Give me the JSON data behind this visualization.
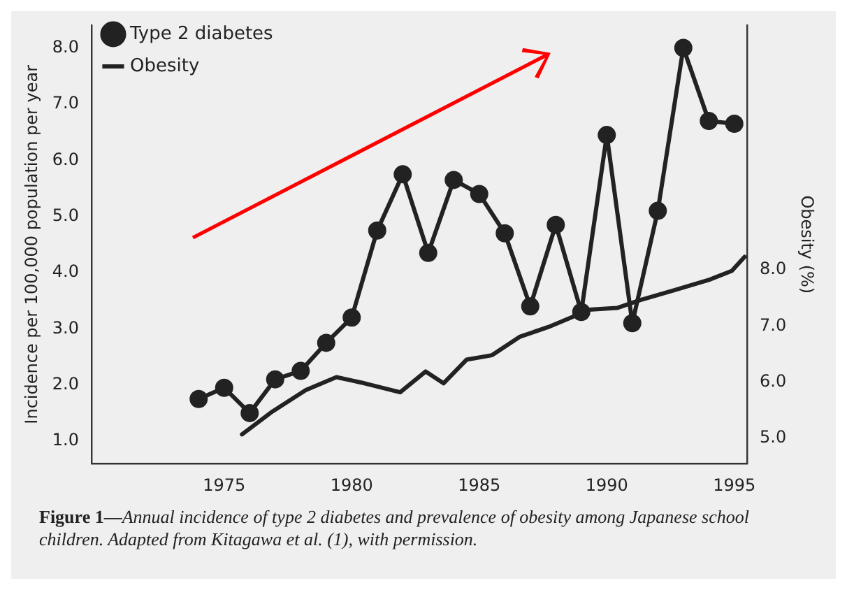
{
  "chart_data": {
    "type": "line",
    "ylabel": "Incidence per 100,000 population per year",
    "y2label": "Obesity (%)",
    "annotations": [
      "Figure 1—",
      "Annual incidence of type 2 diabetes and prevalence of obesity among Japanese school children. Adapted from Kitagawa et al. (1), with permission."
    ],
    "xlim": [
      1969.8,
      1995.5
    ],
    "xticks": [
      1975,
      1980,
      1985,
      1990,
      1995
    ],
    "ylim": [
      0.6,
      8.4
    ],
    "yticks": [
      {
        "value": 1,
        "label": "1.0"
      },
      {
        "value": 2,
        "label": "2.0"
      },
      {
        "value": 3,
        "label": "3.0"
      },
      {
        "value": 4,
        "label": "4.0"
      },
      {
        "value": 5,
        "label": "5.0"
      },
      {
        "value": 6,
        "label": "6.0"
      },
      {
        "value": 7,
        "label": "7.0"
      },
      {
        "value": 8,
        "label": "8.0"
      }
    ],
    "y2lim": [
      4.55,
      12.35
    ],
    "y2ticks": [
      {
        "value": 5,
        "label": "5.0"
      },
      {
        "value": 6,
        "label": "6.0"
      },
      {
        "value": 7,
        "label": "7.0"
      },
      {
        "value": 8,
        "label": "8.0"
      }
    ],
    "grid": false,
    "legend": "top left",
    "series": [
      {
        "name": "Type 2 diabetes",
        "color": "#222222",
        "marker": "circle",
        "x": [
          1974,
          1975,
          1976,
          1977,
          1978,
          1979,
          1980,
          1981,
          1982,
          1983,
          1984,
          1985,
          1986,
          1987,
          1988,
          1989,
          1990,
          1991,
          1992,
          1993,
          1994,
          1995
        ],
        "values": [
          1.75,
          1.95,
          1.5,
          2.1,
          2.25,
          2.75,
          3.2,
          4.75,
          5.75,
          4.35,
          5.65,
          5.4,
          4.7,
          3.4,
          4.85,
          3.3,
          6.45,
          3.1,
          5.1,
          8.0,
          6.7,
          6.65
        ]
      },
      {
        "name": "Obesity",
        "color": "#222222",
        "marker": "none",
        "axis": "y2",
        "x": [
          1975.7,
          1976.9,
          1978.2,
          1979.4,
          1980.5,
          1981.9,
          1982.9,
          1983.6,
          1984.5,
          1985.5,
          1986.6,
          1987.7,
          1988.6,
          1989.3,
          1990.4,
          1991.3,
          1992.6,
          1994.0,
          1994.9,
          1995.4
        ],
        "values": [
          5.07,
          5.48,
          5.86,
          6.09,
          5.98,
          5.82,
          6.19,
          5.98,
          6.4,
          6.48,
          6.81,
          6.98,
          7.15,
          7.29,
          7.32,
          7.46,
          7.63,
          7.82,
          7.98,
          8.23
        ]
      }
    ]
  }
}
